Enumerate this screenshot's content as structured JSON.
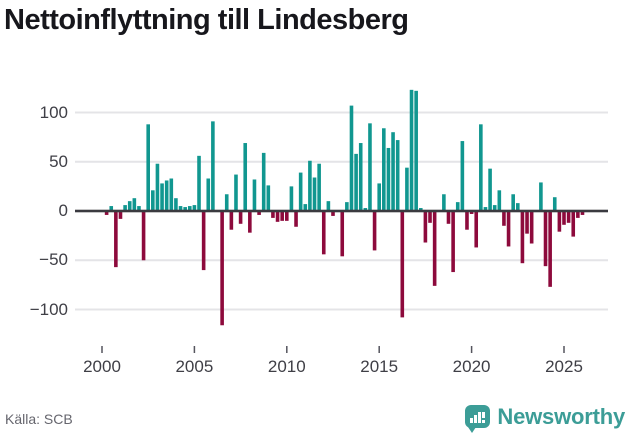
{
  "title": "Nettoinflyttning till Lindesberg",
  "source": "Källa: SCB",
  "branding": {
    "name": "Newsworthy",
    "icon": "bar-chart-speech-bubble-icon",
    "color": "#3C9D97"
  },
  "colors": {
    "positive_bar": "#119790",
    "negative_bar": "#8D0A3C",
    "gridline": "#E4E4E7",
    "zero_line": "#3A3A40",
    "tick_mark": "#55555E",
    "axis_text": "#3F3F46",
    "title_text": "#17171C",
    "source_text": "#66666E"
  },
  "chart_data": {
    "type": "bar",
    "title": "Nettoinflyttning till Lindesberg",
    "xlabel": "",
    "ylabel": "",
    "period": "quarterly",
    "start_period": "2000 Q1",
    "end_period": "2026 Q1",
    "ylim": [
      -125,
      130
    ],
    "grid": true,
    "legend": "none",
    "y_ticks": [
      100,
      50,
      0,
      -50,
      -100
    ],
    "y_tick_labels": [
      "100",
      "50",
      "0",
      "−50",
      "−100"
    ],
    "y_gridlines": [
      100,
      50,
      -50,
      -100
    ],
    "x_tick_years": [
      2000,
      2005,
      2010,
      2015,
      2020,
      2025
    ],
    "x_tick_labels": [
      "2000",
      "2005",
      "2010",
      "2015",
      "2020",
      "2025"
    ],
    "values": [
      0,
      -4,
      5,
      -57,
      -8,
      6,
      10,
      13,
      5,
      -50,
      88,
      21,
      48,
      28,
      31,
      33,
      13,
      5,
      4,
      5,
      6,
      56,
      -60,
      33,
      91,
      0,
      -116,
      17,
      -19,
      37,
      -13,
      69,
      -22,
      32,
      -4,
      59,
      26,
      -7,
      -11,
      -10,
      -10,
      25,
      -16,
      39,
      7,
      51,
      34,
      48,
      -44,
      10,
      -5,
      0,
      -46,
      9,
      107,
      58,
      69,
      3,
      89,
      -40,
      28,
      84,
      64,
      80,
      72,
      -108,
      44,
      123,
      122,
      3,
      -32,
      -12,
      -76,
      0,
      17,
      -13,
      -62,
      9,
      71,
      -19,
      -3,
      -37,
      88,
      4,
      43,
      6,
      21,
      -15,
      -36,
      17,
      8,
      -53,
      -23,
      -33,
      0,
      29,
      -56,
      -77,
      14,
      -21,
      -14,
      -12,
      -26,
      -7,
      -4
    ]
  }
}
